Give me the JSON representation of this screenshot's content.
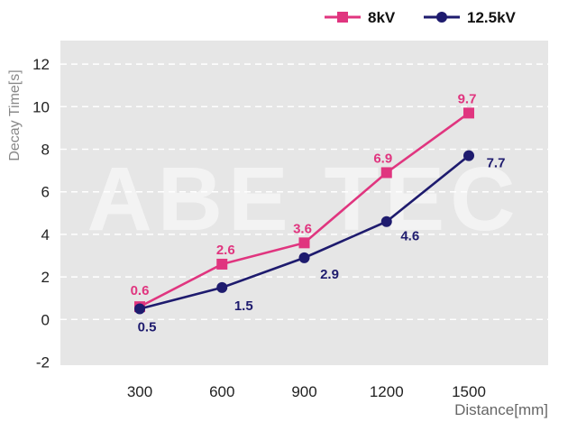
{
  "chart_data": {
    "type": "line",
    "xlabel": "Distance[mm]",
    "ylabel": "Decay Time[s]",
    "x": [
      300,
      600,
      900,
      1200,
      1500
    ],
    "ylim": [
      -2,
      13
    ],
    "yticks": [
      -2,
      0,
      2,
      4,
      6,
      8,
      10,
      12
    ],
    "grid": true,
    "legend": "top-right",
    "watermark": "ABE TEC",
    "series": [
      {
        "name": "8kV",
        "marker": "square",
        "color": "#e0357f",
        "values": [
          0.6,
          2.6,
          3.6,
          6.9,
          9.7
        ],
        "labels": [
          "0.6",
          "2.6",
          "3.6",
          "6.9",
          "9.7"
        ]
      },
      {
        "name": "12.5kV",
        "marker": "circle",
        "color": "#1e1b6e",
        "values": [
          0.5,
          1.5,
          2.9,
          4.6,
          7.7
        ],
        "labels": [
          "0.5",
          "1.5",
          "2.9",
          "4.6",
          "7.7"
        ]
      }
    ]
  }
}
